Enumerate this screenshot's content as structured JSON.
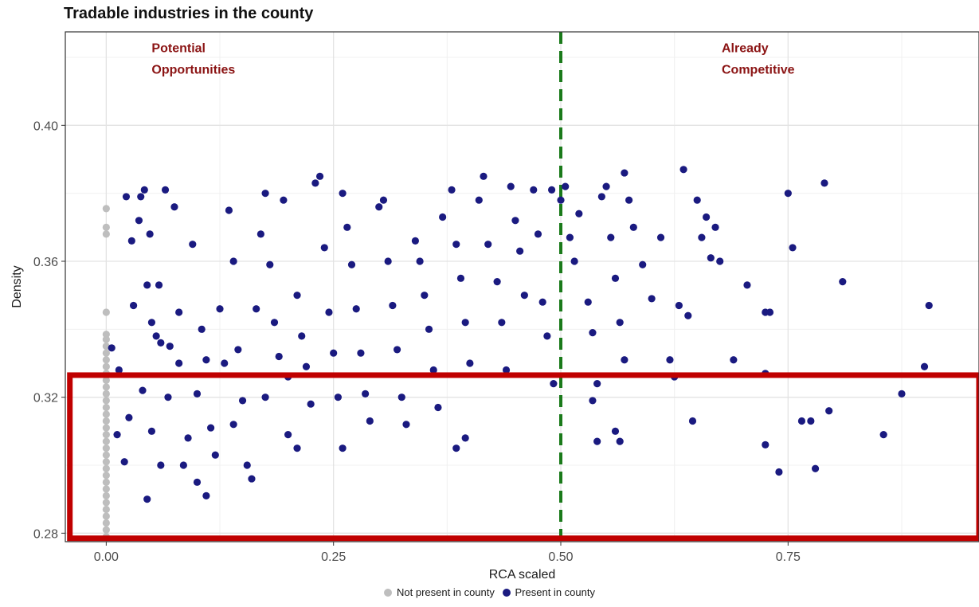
{
  "chart_data": {
    "type": "scatter",
    "title": "Tradable industries in the county",
    "xlabel": "RCA scaled",
    "ylabel": "Density",
    "xlim": [
      -0.045,
      0.96
    ],
    "ylim": [
      0.2775,
      0.4275
    ],
    "x_ticks": [
      0.0,
      0.25,
      0.5,
      0.75
    ],
    "x_tick_labels": [
      "0.00",
      "0.25",
      "0.50",
      "0.75"
    ],
    "y_ticks": [
      0.28,
      0.32,
      0.36,
      0.4
    ],
    "y_tick_labels": [
      "0.28",
      "0.32",
      "0.36",
      "0.40"
    ],
    "grid": true,
    "legend_position": "bottom",
    "reference_line": {
      "x": 0.5,
      "style": "dashed",
      "color": "#1a7a1a"
    },
    "annotations": [
      {
        "lines": [
          "Potential",
          "Opportunities"
        ],
        "x": 0.05,
        "y": 0.4215
      },
      {
        "lines": [
          "Already",
          "Competitive"
        ],
        "x": 0.677,
        "y": 0.4215
      }
    ],
    "highlight_box": {
      "x0": -0.04,
      "x1": 0.96,
      "y0": 0.2785,
      "y1": 0.3265,
      "color": "#c00000"
    },
    "series": [
      {
        "name": "Not present in county",
        "color": "#bebebe",
        "points": [
          [
            0,
            0.3755
          ],
          [
            0,
            0.37
          ],
          [
            0,
            0.368
          ],
          [
            0,
            0.345
          ],
          [
            0,
            0.3385
          ],
          [
            0,
            0.337
          ],
          [
            0,
            0.335
          ],
          [
            0,
            0.333
          ],
          [
            0,
            0.331
          ],
          [
            0,
            0.329
          ],
          [
            0,
            0.327
          ],
          [
            0,
            0.325
          ],
          [
            0,
            0.323
          ],
          [
            0,
            0.321
          ],
          [
            0,
            0.319
          ],
          [
            0,
            0.317
          ],
          [
            0,
            0.315
          ],
          [
            0,
            0.313
          ],
          [
            0,
            0.311
          ],
          [
            0,
            0.309
          ],
          [
            0,
            0.307
          ],
          [
            0,
            0.305
          ],
          [
            0,
            0.303
          ],
          [
            0,
            0.301
          ],
          [
            0,
            0.299
          ],
          [
            0,
            0.297
          ],
          [
            0,
            0.295
          ],
          [
            0,
            0.293
          ],
          [
            0,
            0.291
          ],
          [
            0,
            0.289
          ],
          [
            0,
            0.287
          ],
          [
            0,
            0.285
          ],
          [
            0,
            0.283
          ],
          [
            0,
            0.281
          ],
          [
            0,
            0.279
          ]
        ]
      },
      {
        "name": "Present in county",
        "color": "#1a1a80",
        "points": [
          [
            0.006,
            0.3345
          ],
          [
            0.014,
            0.328
          ],
          [
            0.012,
            0.309
          ],
          [
            0.022,
            0.379
          ],
          [
            0.028,
            0.366
          ],
          [
            0.02,
            0.301
          ],
          [
            0.025,
            0.314
          ],
          [
            0.03,
            0.347
          ],
          [
            0.038,
            0.379
          ],
          [
            0.042,
            0.381
          ],
          [
            0.036,
            0.372
          ],
          [
            0.048,
            0.368
          ],
          [
            0.045,
            0.353
          ],
          [
            0.05,
            0.342
          ],
          [
            0.055,
            0.338
          ],
          [
            0.06,
            0.336
          ],
          [
            0.04,
            0.322
          ],
          [
            0.05,
            0.31
          ],
          [
            0.06,
            0.3
          ],
          [
            0.045,
            0.29
          ],
          [
            0.065,
            0.381
          ],
          [
            0.075,
            0.376
          ],
          [
            0.058,
            0.353
          ],
          [
            0.07,
            0.335
          ],
          [
            0.08,
            0.33
          ],
          [
            0.068,
            0.32
          ],
          [
            0.09,
            0.308
          ],
          [
            0.085,
            0.3
          ],
          [
            0.1,
            0.295
          ],
          [
            0.095,
            0.365
          ],
          [
            0.08,
            0.345
          ],
          [
            0.105,
            0.34
          ],
          [
            0.11,
            0.331
          ],
          [
            0.1,
            0.321
          ],
          [
            0.115,
            0.311
          ],
          [
            0.11,
            0.291
          ],
          [
            0.12,
            0.303
          ],
          [
            0.13,
            0.33
          ],
          [
            0.125,
            0.346
          ],
          [
            0.135,
            0.375
          ],
          [
            0.14,
            0.36
          ],
          [
            0.145,
            0.334
          ],
          [
            0.15,
            0.319
          ],
          [
            0.14,
            0.312
          ],
          [
            0.155,
            0.3
          ],
          [
            0.16,
            0.296
          ],
          [
            0.165,
            0.346
          ],
          [
            0.17,
            0.368
          ],
          [
            0.175,
            0.38
          ],
          [
            0.18,
            0.359
          ],
          [
            0.185,
            0.342
          ],
          [
            0.19,
            0.332
          ],
          [
            0.175,
            0.32
          ],
          [
            0.2,
            0.326
          ],
          [
            0.2,
            0.309
          ],
          [
            0.195,
            0.378
          ],
          [
            0.21,
            0.35
          ],
          [
            0.215,
            0.338
          ],
          [
            0.22,
            0.329
          ],
          [
            0.225,
            0.318
          ],
          [
            0.21,
            0.305
          ],
          [
            0.23,
            0.383
          ],
          [
            0.235,
            0.385
          ],
          [
            0.24,
            0.364
          ],
          [
            0.245,
            0.345
          ],
          [
            0.25,
            0.333
          ],
          [
            0.255,
            0.32
          ],
          [
            0.26,
            0.305
          ],
          [
            0.26,
            0.38
          ],
          [
            0.265,
            0.37
          ],
          [
            0.27,
            0.359
          ],
          [
            0.275,
            0.346
          ],
          [
            0.28,
            0.333
          ],
          [
            0.285,
            0.321
          ],
          [
            0.29,
            0.313
          ],
          [
            0.3,
            0.376
          ],
          [
            0.305,
            0.378
          ],
          [
            0.31,
            0.36
          ],
          [
            0.315,
            0.347
          ],
          [
            0.32,
            0.334
          ],
          [
            0.325,
            0.32
          ],
          [
            0.33,
            0.312
          ],
          [
            0.34,
            0.366
          ],
          [
            0.345,
            0.36
          ],
          [
            0.35,
            0.35
          ],
          [
            0.355,
            0.34
          ],
          [
            0.36,
            0.328
          ],
          [
            0.365,
            0.317
          ],
          [
            0.37,
            0.373
          ],
          [
            0.38,
            0.381
          ],
          [
            0.385,
            0.365
          ],
          [
            0.39,
            0.355
          ],
          [
            0.395,
            0.342
          ],
          [
            0.4,
            0.33
          ],
          [
            0.385,
            0.305
          ],
          [
            0.395,
            0.308
          ],
          [
            0.41,
            0.378
          ],
          [
            0.415,
            0.385
          ],
          [
            0.42,
            0.365
          ],
          [
            0.43,
            0.354
          ],
          [
            0.435,
            0.342
          ],
          [
            0.44,
            0.328
          ],
          [
            0.445,
            0.382
          ],
          [
            0.45,
            0.372
          ],
          [
            0.455,
            0.363
          ],
          [
            0.46,
            0.35
          ],
          [
            0.47,
            0.381
          ],
          [
            0.475,
            0.368
          ],
          [
            0.48,
            0.348
          ],
          [
            0.485,
            0.338
          ],
          [
            0.49,
            0.381
          ],
          [
            0.492,
            0.324
          ],
          [
            0.5,
            0.378
          ],
          [
            0.505,
            0.382
          ],
          [
            0.51,
            0.367
          ],
          [
            0.515,
            0.36
          ],
          [
            0.52,
            0.374
          ],
          [
            0.53,
            0.348
          ],
          [
            0.535,
            0.339
          ],
          [
            0.54,
            0.324
          ],
          [
            0.535,
            0.319
          ],
          [
            0.54,
            0.307
          ],
          [
            0.545,
            0.379
          ],
          [
            0.55,
            0.382
          ],
          [
            0.555,
            0.367
          ],
          [
            0.56,
            0.355
          ],
          [
            0.565,
            0.342
          ],
          [
            0.57,
            0.331
          ],
          [
            0.56,
            0.31
          ],
          [
            0.565,
            0.307
          ],
          [
            0.57,
            0.386
          ],
          [
            0.575,
            0.378
          ],
          [
            0.58,
            0.37
          ],
          [
            0.59,
            0.359
          ],
          [
            0.6,
            0.349
          ],
          [
            0.61,
            0.367
          ],
          [
            0.62,
            0.331
          ],
          [
            0.625,
            0.326
          ],
          [
            0.63,
            0.347
          ],
          [
            0.635,
            0.387
          ],
          [
            0.64,
            0.344
          ],
          [
            0.645,
            0.313
          ],
          [
            0.65,
            0.378
          ],
          [
            0.655,
            0.367
          ],
          [
            0.66,
            0.373
          ],
          [
            0.665,
            0.361
          ],
          [
            0.67,
            0.37
          ],
          [
            0.675,
            0.36
          ],
          [
            0.69,
            0.331
          ],
          [
            0.705,
            0.353
          ],
          [
            0.725,
            0.345
          ],
          [
            0.73,
            0.345
          ],
          [
            0.725,
            0.327
          ],
          [
            0.725,
            0.306
          ],
          [
            0.74,
            0.298
          ],
          [
            0.75,
            0.38
          ],
          [
            0.755,
            0.364
          ],
          [
            0.765,
            0.313
          ],
          [
            0.775,
            0.313
          ],
          [
            0.78,
            0.299
          ],
          [
            0.79,
            0.383
          ],
          [
            0.795,
            0.316
          ],
          [
            0.81,
            0.354
          ],
          [
            0.855,
            0.309
          ],
          [
            0.875,
            0.321
          ],
          [
            0.9,
            0.329
          ],
          [
            0.905,
            0.347
          ]
        ]
      }
    ]
  },
  "legend": {
    "items": [
      {
        "label": "Not present in county",
        "color": "#bebebe"
      },
      {
        "label": "Present in county",
        "color": "#1a1a80"
      }
    ]
  }
}
